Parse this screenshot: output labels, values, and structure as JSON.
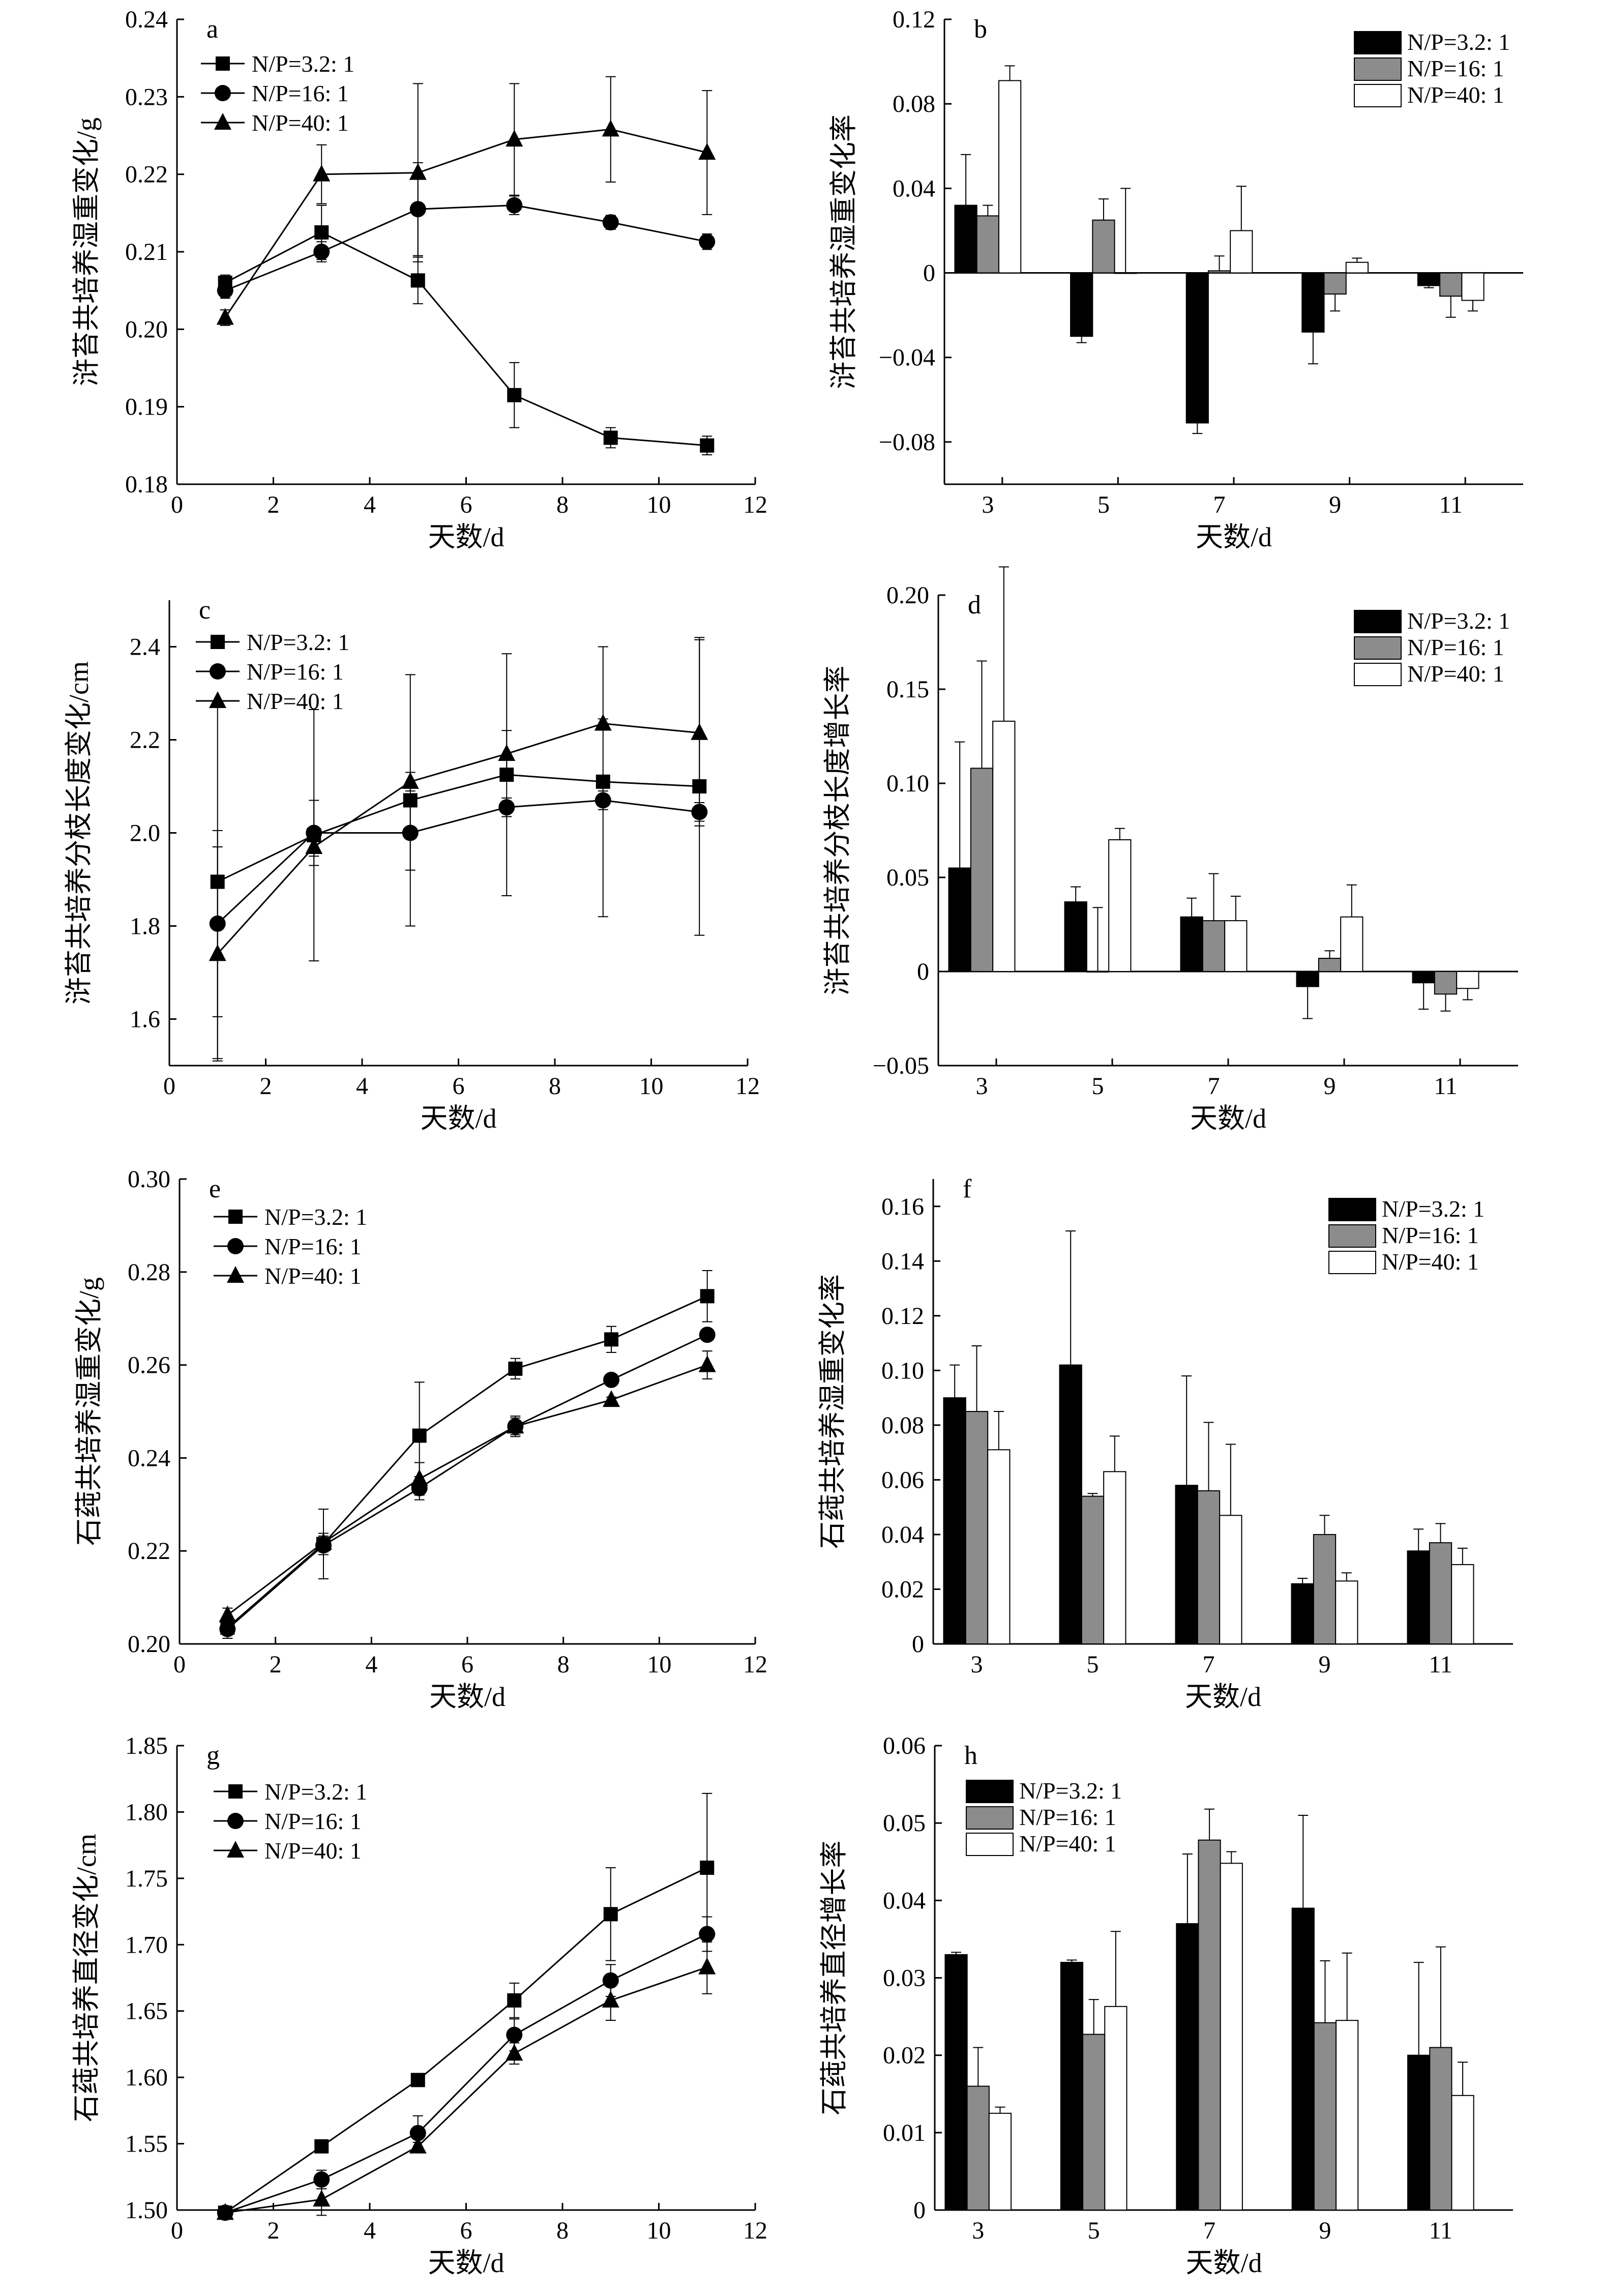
{
  "chart_data": [
    {
      "panel": "a",
      "type": "line",
      "xlabel": "天数/d",
      "ylabel": "浒苔共培养湿重变化/g",
      "xlim": [
        0,
        12
      ],
      "ylim": [
        0.18,
        0.24
      ],
      "xticks": [
        0,
        2,
        4,
        6,
        8,
        10,
        12
      ],
      "yticks": [
        "0.18",
        "0.19",
        "0.20",
        "0.21",
        "0.22",
        "0.23",
        "0.24"
      ],
      "legend": "top-left",
      "x": [
        1,
        3,
        5,
        7,
        9,
        11
      ],
      "series": [
        {
          "name": "N/P=3.2: 1",
          "marker": "square",
          "values": [
            0.206,
            0.2125,
            0.2063,
            0.1915,
            0.186,
            0.185
          ],
          "errors": [
            0.001,
            0.0035,
            0.003,
            0.0042,
            0.0013,
            0.0012
          ]
        },
        {
          "name": "N/P=16: 1",
          "marker": "circle",
          "values": [
            0.205,
            0.21,
            0.2155,
            0.216,
            0.2138,
            0.2113
          ],
          "errors": [
            0.001,
            0.0013,
            0.006,
            0.0012,
            0.0009,
            0.001
          ]
        },
        {
          "name": "N/P=40: 1",
          "marker": "triangle",
          "values": [
            0.2015,
            0.22,
            0.2202,
            0.2245,
            0.2258,
            0.2228
          ],
          "errors": [
            0.001,
            0.0038,
            0.0115,
            0.0072,
            0.0068,
            0.008
          ]
        }
      ]
    },
    {
      "panel": "b",
      "type": "bar",
      "xlabel": "天数/d",
      "ylabel": "浒苔共培养湿重变化率",
      "ylim": [
        -0.1,
        0.12
      ],
      "yticks": [
        "−0.08",
        "−0.04",
        "0",
        "0.04",
        "0.08",
        "0.12"
      ],
      "legend": "top-right",
      "categories": [
        "3",
        "5",
        "7",
        "9",
        "11"
      ],
      "series": [
        {
          "name": "N/P=3.2: 1",
          "fill": "#000000",
          "values": [
            0.032,
            -0.03,
            -0.071,
            -0.028,
            -0.006
          ],
          "errors": [
            0.024,
            0.003,
            0.005,
            0.015,
            0.001
          ]
        },
        {
          "name": "N/P=16: 1",
          "fill": "#8c8c8c",
          "values": [
            0.027,
            0.025,
            0.001,
            -0.01,
            -0.011
          ],
          "errors": [
            0.005,
            0.01,
            0.007,
            0.008,
            0.01
          ]
        },
        {
          "name": "N/P=40: 1",
          "fill": "#ffffff",
          "values": [
            0.091,
            0.0,
            0.02,
            0.005,
            -0.013
          ],
          "errors": [
            0.007,
            0.04,
            0.021,
            0.002,
            0.005
          ]
        }
      ]
    },
    {
      "panel": "c",
      "type": "line",
      "xlabel": "天数/d",
      "ylabel": "浒苔共培养分枝长度变化/cm",
      "xlim": [
        0,
        12
      ],
      "ylim": [
        1.5,
        2.5
      ],
      "xticks": [
        0,
        2,
        4,
        6,
        8,
        10,
        12
      ],
      "yticks": [
        "1.6",
        "1.8",
        "2.0",
        "2.2",
        "2.4"
      ],
      "legend": "top-left",
      "x": [
        1,
        3,
        5,
        7,
        9,
        11
      ],
      "series": [
        {
          "name": "N/P=3.2: 1",
          "marker": "square",
          "values": [
            1.895,
            1.995,
            2.07,
            2.125,
            2.11,
            2.1
          ],
          "errors": [
            0.38,
            0.27,
            0.27,
            0.26,
            0.29,
            0.32
          ]
        },
        {
          "name": "N/P=16: 1",
          "marker": "circle",
          "values": [
            1.805,
            2.0,
            2.0,
            2.055,
            2.07,
            2.045
          ],
          "errors": [
            0.2,
            0.07,
            0.08,
            0.02,
            0.02,
            0.02
          ]
        },
        {
          "name": "N/P=40: 1",
          "marker": "triangle",
          "values": [
            1.74,
            1.97,
            2.11,
            2.17,
            2.235,
            2.215
          ],
          "errors": [
            0.23,
            0.02,
            0.02,
            0.05,
            0.01,
            0.2
          ]
        }
      ]
    },
    {
      "panel": "d",
      "type": "bar",
      "xlabel": "天数/d",
      "ylabel": "浒苔共培养分枝长度增长率",
      "ylim": [
        -0.05,
        0.2
      ],
      "yticks": [
        "−0.05",
        "0",
        "0.05",
        "0.10",
        "0.15",
        "0.20"
      ],
      "legend": "top-right",
      "categories": [
        "3",
        "5",
        "7",
        "9",
        "11"
      ],
      "series": [
        {
          "name": "N/P=3.2: 1",
          "fill": "#000000",
          "values": [
            0.055,
            0.037,
            0.029,
            -0.008,
            -0.006
          ],
          "errors": [
            0.067,
            0.008,
            0.01,
            0.017,
            0.014
          ]
        },
        {
          "name": "N/P=16: 1",
          "fill": "#8c8c8c",
          "values": [
            0.108,
            0.0,
            0.027,
            0.007,
            -0.012
          ],
          "errors": [
            0.057,
            0.034,
            0.025,
            0.004,
            0.009
          ]
        },
        {
          "name": "N/P=40: 1",
          "fill": "#ffffff",
          "values": [
            0.133,
            0.07,
            0.027,
            0.029,
            -0.009
          ],
          "errors": [
            0.082,
            0.006,
            0.013,
            0.017,
            0.006
          ]
        }
      ]
    },
    {
      "panel": "e",
      "type": "line",
      "xlabel": "天数/d",
      "ylabel": "石莼共培养湿重变化/g",
      "xlim": [
        0,
        12
      ],
      "ylim": [
        0.2,
        0.3
      ],
      "xticks": [
        0,
        2,
        4,
        6,
        8,
        10,
        12
      ],
      "yticks": [
        "0.20",
        "0.22",
        "0.24",
        "0.26",
        "0.28",
        "0.30"
      ],
      "legend": "top-left",
      "x": [
        1,
        3,
        5,
        7,
        9,
        11
      ],
      "series": [
        {
          "name": "N/P=3.2: 1",
          "marker": "square",
          "values": [
            0.2035,
            0.2215,
            0.2448,
            0.2592,
            0.2655,
            0.2748
          ],
          "errors": [
            0.0012,
            0.0075,
            0.0115,
            0.0022,
            0.0028,
            0.0055
          ]
        },
        {
          "name": "N/P=16: 1",
          "marker": "circle",
          "values": [
            0.2032,
            0.2212,
            0.2335,
            0.2468,
            0.2568,
            0.2665
          ],
          "errors": [
            0.002,
            0.002,
            0.0025,
            0.0018,
            0.0007,
            0.0008
          ]
        },
        {
          "name": "N/P=40: 1",
          "marker": "triangle",
          "values": [
            0.2062,
            0.2218,
            0.2355,
            0.2468,
            0.2525,
            0.26
          ],
          "errors": [
            0.0015,
            0.002,
            0.0035,
            0.0022,
            0.0006,
            0.003
          ]
        }
      ]
    },
    {
      "panel": "f",
      "type": "bar",
      "xlabel": "天数/d",
      "ylabel": "石莼共培养湿重变化率",
      "ylim": [
        0,
        0.17
      ],
      "yticks": [
        "0",
        "0.02",
        "0.04",
        "0.06",
        "0.08",
        "0.10",
        "0.12",
        "0.14",
        "0.16"
      ],
      "legend": "top-right",
      "categories": [
        "3",
        "5",
        "7",
        "9",
        "11"
      ],
      "series": [
        {
          "name": "N/P=3.2: 1",
          "fill": "#000000",
          "values": [
            0.09,
            0.102,
            0.058,
            0.022,
            0.034
          ],
          "errors": [
            0.012,
            0.049,
            0.04,
            0.002,
            0.008
          ]
        },
        {
          "name": "N/P=16: 1",
          "fill": "#8c8c8c",
          "values": [
            0.085,
            0.054,
            0.056,
            0.04,
            0.037
          ],
          "errors": [
            0.024,
            0.001,
            0.025,
            0.007,
            0.007
          ]
        },
        {
          "name": "N/P=40: 1",
          "fill": "#ffffff",
          "values": [
            0.071,
            0.063,
            0.047,
            0.023,
            0.029
          ],
          "errors": [
            0.014,
            0.013,
            0.026,
            0.003,
            0.006
          ]
        }
      ]
    },
    {
      "panel": "g",
      "type": "line",
      "xlabel": "天数/d",
      "ylabel": "石莼共培养直径变化/cm",
      "xlim": [
        0,
        12
      ],
      "ylim": [
        1.5,
        1.85
      ],
      "xticks": [
        0,
        2,
        4,
        6,
        8,
        10,
        12
      ],
      "yticks": [
        "1.50",
        "1.55",
        "1.60",
        "1.65",
        "1.70",
        "1.75",
        "1.80",
        "1.85"
      ],
      "legend": "top-left",
      "x": [
        1,
        3,
        5,
        7,
        9,
        11
      ],
      "series": [
        {
          "name": "N/P=3.2: 1",
          "marker": "square",
          "values": [
            1.498,
            1.548,
            1.598,
            1.658,
            1.723,
            1.758
          ],
          "errors": [
            0.002,
            0.003,
            0.002,
            0.013,
            0.035,
            0.056
          ]
        },
        {
          "name": "N/P=16: 1",
          "marker": "circle",
          "values": [
            1.498,
            1.523,
            1.558,
            1.632,
            1.673,
            1.708
          ],
          "errors": [
            0.002,
            0.007,
            0.013,
            0.012,
            0.012,
            0.013
          ]
        },
        {
          "name": "N/P=40: 1",
          "marker": "triangle",
          "values": [
            1.498,
            1.508,
            1.548,
            1.618,
            1.658,
            1.683
          ],
          "errors": [
            0.002,
            0.012,
            0.003,
            0.008,
            0.015,
            0.02
          ]
        }
      ]
    },
    {
      "panel": "h",
      "type": "bar",
      "xlabel": "天数/d",
      "ylabel": "石莼共培养直径增长率",
      "ylim": [
        0,
        0.06
      ],
      "yticks": [
        "0",
        "0.01",
        "0.02",
        "0.03",
        "0.04",
        "0.05",
        "0.06"
      ],
      "legend": "top-left",
      "categories": [
        "3",
        "5",
        "7",
        "9",
        "11"
      ],
      "series": [
        {
          "name": "N/P=3.2: 1",
          "fill": "#000000",
          "values": [
            0.033,
            0.032,
            0.037,
            0.039,
            0.02
          ],
          "errors": [
            0.0003,
            0.0003,
            0.009,
            0.012,
            0.012
          ]
        },
        {
          "name": "N/P=16: 1",
          "fill": "#8c8c8c",
          "values": [
            0.016,
            0.0227,
            0.0478,
            0.0242,
            0.021
          ],
          "errors": [
            0.005,
            0.0045,
            0.004,
            0.008,
            0.013
          ]
        },
        {
          "name": "N/P=40: 1",
          "fill": "#ffffff",
          "values": [
            0.0125,
            0.0263,
            0.0448,
            0.0245,
            0.0148
          ],
          "errors": [
            0.0008,
            0.0097,
            0.0015,
            0.0087,
            0.0043
          ]
        }
      ]
    }
  ]
}
